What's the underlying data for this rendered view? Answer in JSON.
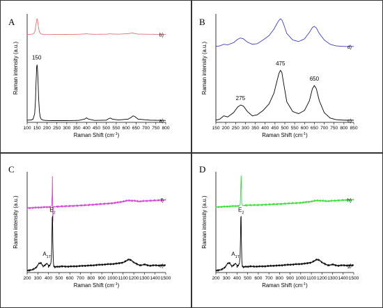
{
  "chart_data": [
    {
      "panel": "A",
      "type": "line",
      "xlabel": "Raman Shift",
      "xunit": "(cm",
      "xunit_sup": "-1",
      "xunit_close": ")",
      "ylabel": "Raman intensity",
      "yunit": "(a.u.)",
      "xlim": [
        100,
        800
      ],
      "xticks": [
        "100",
        "150",
        "200",
        "250",
        "300",
        "350",
        "400",
        "450",
        "500",
        "550",
        "600",
        "650",
        "700",
        "750",
        "800"
      ],
      "series": [
        {
          "name": "b)",
          "color": "#e07070",
          "x": [
            100,
            120,
            130,
            135,
            140,
            143,
            145,
            148,
            150,
            152,
            155,
            158,
            162,
            170,
            185,
            220,
            300,
            360,
            395,
            400,
            405,
            440,
            500,
            515,
            520,
            525,
            560,
            610,
            625,
            632,
            640,
            660,
            720,
            790,
            800
          ],
          "y": [
            0.81,
            0.812,
            0.815,
            0.822,
            0.845,
            0.88,
            0.908,
            0.94,
            0.955,
            0.945,
            0.91,
            0.87,
            0.832,
            0.815,
            0.81,
            0.81,
            0.811,
            0.812,
            0.816,
            0.818,
            0.815,
            0.812,
            0.813,
            0.816,
            0.817,
            0.815,
            0.813,
            0.818,
            0.822,
            0.824,
            0.82,
            0.814,
            0.812,
            0.811,
            0.811
          ]
        },
        {
          "name": "a)",
          "color": "#000000",
          "x": [
            100,
            120,
            130,
            138,
            142,
            145,
            148,
            150,
            152,
            155,
            158,
            162,
            166,
            170,
            178,
            190,
            220,
            300,
            360,
            390,
            400,
            410,
            440,
            500,
            510,
            520,
            530,
            560,
            610,
            625,
            635,
            645,
            660,
            720,
            790,
            800
          ],
          "y": [
            0.02,
            0.022,
            0.03,
            0.08,
            0.2,
            0.37,
            0.51,
            0.53,
            0.5,
            0.38,
            0.22,
            0.1,
            0.05,
            0.032,
            0.022,
            0.018,
            0.016,
            0.016,
            0.018,
            0.03,
            0.042,
            0.03,
            0.018,
            0.02,
            0.032,
            0.04,
            0.03,
            0.022,
            0.03,
            0.045,
            0.06,
            0.052,
            0.03,
            0.02,
            0.018,
            0.018
          ]
        }
      ],
      "annotations": [
        {
          "text": "150",
          "x": 148,
          "y": 0.58
        }
      ]
    },
    {
      "panel": "B",
      "type": "line",
      "xlabel": "Raman Shift",
      "xunit": "(cm",
      "xunit_sup": "-1",
      "xunit_close": ")",
      "ylabel": "Raman intensity",
      "yunit": "(a.u.)",
      "xlim": [
        150,
        850
      ],
      "xticks": [
        "150",
        "200",
        "250",
        "300",
        "350",
        "400",
        "450",
        "500",
        "550",
        "600",
        "650",
        "700",
        "750",
        "800",
        "850"
      ],
      "series": [
        {
          "name": "d)",
          "color": "#3d3dbb",
          "x": [
            150,
            170,
            190,
            210,
            240,
            260,
            275,
            290,
            310,
            335,
            360,
            390,
            420,
            445,
            460,
            470,
            478,
            485,
            495,
            510,
            540,
            570,
            600,
            625,
            640,
            650,
            660,
            675,
            700,
            730,
            760,
            800,
            850
          ],
          "y": [
            0.7,
            0.705,
            0.72,
            0.715,
            0.735,
            0.765,
            0.778,
            0.77,
            0.74,
            0.72,
            0.725,
            0.76,
            0.8,
            0.86,
            0.91,
            0.94,
            0.955,
            0.945,
            0.9,
            0.82,
            0.76,
            0.745,
            0.77,
            0.83,
            0.875,
            0.885,
            0.87,
            0.82,
            0.76,
            0.72,
            0.705,
            0.7,
            0.7
          ]
        },
        {
          "name": "c)",
          "color": "#000000",
          "x": [
            150,
            170,
            190,
            210,
            240,
            260,
            275,
            290,
            310,
            335,
            360,
            390,
            420,
            445,
            460,
            470,
            478,
            485,
            495,
            510,
            540,
            570,
            600,
            625,
            640,
            650,
            660,
            675,
            700,
            730,
            760,
            800,
            850
          ],
          "y": [
            0.02,
            0.03,
            0.06,
            0.05,
            0.09,
            0.14,
            0.16,
            0.15,
            0.1,
            0.06,
            0.07,
            0.11,
            0.17,
            0.27,
            0.38,
            0.45,
            0.48,
            0.46,
            0.35,
            0.19,
            0.1,
            0.08,
            0.11,
            0.2,
            0.31,
            0.34,
            0.31,
            0.2,
            0.09,
            0.04,
            0.025,
            0.02,
            0.02
          ]
        }
      ],
      "annotations": [
        {
          "text": "275",
          "x": 275,
          "y": 0.205
        },
        {
          "text": "475",
          "x": 478,
          "y": 0.525
        },
        {
          "text": "650",
          "x": 650,
          "y": 0.385
        }
      ]
    },
    {
      "panel": "C",
      "type": "line",
      "xlabel": "Raman Shift",
      "xunit": "(cm",
      "xunit_sup": "-1",
      "xunit_close": ")",
      "ylabel": "Raman intensity",
      "yunit": "(a.u.)",
      "xlim": [
        200,
        1500
      ],
      "xticks": [
        "200",
        "300",
        "400",
        "500",
        "600",
        "700",
        "800",
        "900",
        "1000",
        "1100",
        "1200",
        "1300",
        "1400",
        "1500"
      ],
      "series": [
        {
          "name": "f)",
          "color": "#d23ed2",
          "x": [
            200,
            250,
            300,
            350,
            400,
            420,
            430,
            435,
            437,
            439,
            441,
            443,
            445,
            450,
            460,
            500,
            600,
            700,
            800,
            900,
            1000,
            1050,
            1100,
            1150,
            1200,
            1250,
            1300,
            1400,
            1500
          ],
          "y": [
            0.64,
            0.642,
            0.645,
            0.648,
            0.65,
            0.652,
            0.665,
            0.78,
            0.95,
            0.7,
            0.5,
            0.6,
            0.65,
            0.655,
            0.652,
            0.655,
            0.66,
            0.665,
            0.672,
            0.68,
            0.688,
            0.695,
            0.705,
            0.715,
            0.712,
            0.706,
            0.71,
            0.715,
            0.72
          ]
        },
        {
          "name": "e)",
          "color": "#000000",
          "x": [
            200,
            240,
            270,
            290,
            300,
            310,
            330,
            340,
            350,
            370,
            385,
            395,
            400,
            410,
            420,
            428,
            432,
            435,
            438,
            441,
            445,
            450,
            460,
            480,
            500,
            520,
            550,
            600,
            650,
            700,
            750,
            800,
            850,
            900,
            950,
            1000,
            1050,
            1100,
            1130,
            1150,
            1170,
            1180,
            1200,
            1230,
            1260,
            1300,
            1350,
            1400,
            1450,
            1500
          ],
          "y": [
            0.02,
            0.025,
            0.04,
            0.055,
            0.075,
            0.09,
            0.095,
            0.08,
            0.06,
            0.075,
            0.09,
            0.08,
            0.06,
            0.07,
            0.08,
            0.15,
            0.35,
            0.54,
            0.56,
            0.3,
            0.12,
            0.06,
            0.055,
            0.06,
            0.058,
            0.062,
            0.06,
            0.06,
            0.062,
            0.065,
            0.068,
            0.07,
            0.075,
            0.078,
            0.082,
            0.085,
            0.09,
            0.1,
            0.115,
            0.13,
            0.125,
            0.12,
            0.1,
            0.085,
            0.07,
            0.08,
            0.068,
            0.072,
            0.07,
            0.072
          ]
        }
      ],
      "annotations": [
        {
          "text": "E",
          "sub": "2",
          "x": 438,
          "y": 0.605
        },
        {
          "text": "A",
          "sub": "1T",
          "x": 385,
          "y": 0.165
        }
      ]
    },
    {
      "panel": "D",
      "type": "line",
      "xlabel": "Raman Shift",
      "xunit": "(cm",
      "xunit_sup": "-1",
      "xunit_close": ")",
      "ylabel": "Raman intensity",
      "yunit": "(a.u.)",
      "xlim": [
        200,
        1500
      ],
      "xticks": [
        "200",
        "300",
        "400",
        "500",
        "600",
        "700",
        "800",
        "900",
        "1000",
        "1100",
        "1200",
        "1300",
        "1400",
        "1500"
      ],
      "series": [
        {
          "name": "h)",
          "color": "#33dd33",
          "x": [
            200,
            250,
            300,
            350,
            400,
            420,
            430,
            435,
            438,
            441,
            444,
            450,
            460,
            500,
            600,
            700,
            800,
            900,
            1000,
            1050,
            1100,
            1150,
            1200,
            1250,
            1300,
            1400,
            1500
          ],
          "y": [
            0.65,
            0.652,
            0.655,
            0.658,
            0.66,
            0.662,
            0.68,
            0.86,
            0.96,
            0.86,
            0.69,
            0.668,
            0.665,
            0.668,
            0.67,
            0.675,
            0.68,
            0.686,
            0.692,
            0.698,
            0.705,
            0.715,
            0.712,
            0.708,
            0.712,
            0.718,
            0.722
          ]
        },
        {
          "name": "g)",
          "color": "#000000",
          "x": [
            200,
            240,
            270,
            290,
            300,
            310,
            330,
            340,
            350,
            370,
            385,
            395,
            400,
            410,
            420,
            428,
            432,
            435,
            438,
            441,
            445,
            450,
            460,
            480,
            500,
            520,
            550,
            600,
            650,
            700,
            750,
            800,
            850,
            900,
            950,
            1000,
            1050,
            1100,
            1130,
            1150,
            1170,
            1180,
            1200,
            1230,
            1260,
            1300,
            1350,
            1400,
            1450,
            1500
          ],
          "y": [
            0.02,
            0.025,
            0.04,
            0.055,
            0.075,
            0.09,
            0.095,
            0.08,
            0.06,
            0.075,
            0.09,
            0.08,
            0.06,
            0.07,
            0.08,
            0.15,
            0.35,
            0.54,
            0.56,
            0.3,
            0.12,
            0.06,
            0.055,
            0.06,
            0.058,
            0.062,
            0.06,
            0.06,
            0.062,
            0.065,
            0.068,
            0.07,
            0.075,
            0.078,
            0.082,
            0.085,
            0.09,
            0.1,
            0.115,
            0.13,
            0.125,
            0.12,
            0.1,
            0.085,
            0.07,
            0.08,
            0.068,
            0.072,
            0.07,
            0.072
          ]
        }
      ],
      "annotations": [
        {
          "text": "E",
          "sub": "2",
          "x": 438,
          "y": 0.605
        },
        {
          "text": "A",
          "sub": "1T",
          "x": 385,
          "y": 0.165
        }
      ]
    }
  ]
}
